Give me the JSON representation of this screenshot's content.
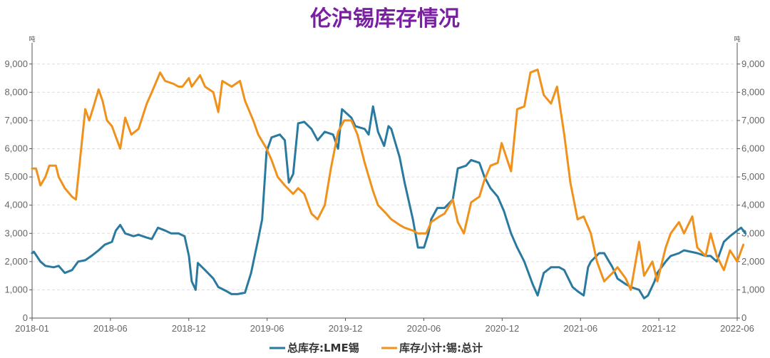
{
  "chart_data": {
    "type": "line",
    "title": "伦沪锡库存情况",
    "y_unit_left": "吨",
    "y_unit_right": "吨",
    "ylim_left": [
      0,
      9500
    ],
    "ylim_right": [
      0,
      9500
    ],
    "y_ticks": [
      0,
      1000,
      2000,
      3000,
      4000,
      5000,
      6000,
      7000,
      8000,
      9000
    ],
    "y_tick_labels": [
      "0",
      "1,000",
      "2,000",
      "3,000",
      "4,000",
      "5,000",
      "6,000",
      "7,000",
      "8,000",
      "9,000"
    ],
    "x_tick_labels": [
      "2018-01",
      "2018-06",
      "2018-12",
      "2019-06",
      "2019-12",
      "2020-06",
      "2020-12",
      "2021-06",
      "2021-12",
      "2022-06"
    ],
    "x_range": [
      "2018-01",
      "2022-06"
    ],
    "grid": "horizontal dashed",
    "legend_position": "bottom",
    "series": [
      {
        "name": "总库存:LME锡",
        "color": "#2a7aa0",
        "axis": "left",
        "points": [
          [
            "2018-01",
            2300
          ],
          [
            "2018-01-05",
            2350
          ],
          [
            "2018-01-20",
            2000
          ],
          [
            "2018-02",
            1850
          ],
          [
            "2018-02-20",
            1800
          ],
          [
            "2018-03",
            1850
          ],
          [
            "2018-03-15",
            1600
          ],
          [
            "2018-04",
            1700
          ],
          [
            "2018-04-15",
            2000
          ],
          [
            "2018-05",
            2050
          ],
          [
            "2018-05-15",
            2200
          ],
          [
            "2018-06",
            2400
          ],
          [
            "2018-06-15",
            2600
          ],
          [
            "2018-07",
            2700
          ],
          [
            "2018-07-10",
            3100
          ],
          [
            "2018-07-20",
            3300
          ],
          [
            "2018-08",
            3000
          ],
          [
            "2018-08-20",
            2900
          ],
          [
            "2018-09",
            2950
          ],
          [
            "2018-09-20",
            2850
          ],
          [
            "2018-10",
            2800
          ],
          [
            "2018-10-15",
            3200
          ],
          [
            "2018-11",
            3100
          ],
          [
            "2018-11-15",
            3000
          ],
          [
            "2018-12",
            3000
          ],
          [
            "2018-12-15",
            2900
          ],
          [
            "2018-12-25",
            2200
          ],
          [
            "2019-01",
            1300
          ],
          [
            "2019-01-10",
            1000
          ],
          [
            "2019-01-15",
            1950
          ],
          [
            "2019-02",
            1700
          ],
          [
            "2019-02-20",
            1400
          ],
          [
            "2019-03",
            1100
          ],
          [
            "2019-03-20",
            950
          ],
          [
            "2019-04",
            850
          ],
          [
            "2019-04-15",
            850
          ],
          [
            "2019-05",
            900
          ],
          [
            "2019-05-15",
            1600
          ],
          [
            "2019-06",
            2800
          ],
          [
            "2019-06-10",
            3500
          ],
          [
            "2019-06-20",
            5900
          ],
          [
            "2019-07",
            6400
          ],
          [
            "2019-07-20",
            6500
          ],
          [
            "2019-08",
            6300
          ],
          [
            "2019-08-10",
            4800
          ],
          [
            "2019-08-20",
            5100
          ],
          [
            "2019-09",
            6900
          ],
          [
            "2019-09-15",
            6950
          ],
          [
            "2019-10",
            6700
          ],
          [
            "2019-10-15",
            6300
          ],
          [
            "2019-11",
            6600
          ],
          [
            "2019-11-20",
            6500
          ],
          [
            "2019-12",
            6000
          ],
          [
            "2019-12-10",
            7400
          ],
          [
            "2020-01",
            7100
          ],
          [
            "2020-01-10",
            6800
          ],
          [
            "2020-02",
            6700
          ],
          [
            "2020-02-10",
            6500
          ],
          [
            "2020-02-20",
            7500
          ],
          [
            "2020-03",
            6600
          ],
          [
            "2020-03-15",
            6100
          ],
          [
            "2020-03-25",
            6800
          ],
          [
            "2020-04",
            6700
          ],
          [
            "2020-04-20",
            5700
          ],
          [
            "2020-05",
            4800
          ],
          [
            "2020-05-20",
            3500
          ],
          [
            "2020-06",
            2500
          ],
          [
            "2020-06-15",
            2500
          ],
          [
            "2020-06-25",
            3000
          ],
          [
            "2020-07",
            3500
          ],
          [
            "2020-07-15",
            3900
          ],
          [
            "2020-08",
            3900
          ],
          [
            "2020-08-20",
            4200
          ],
          [
            "2020-09",
            5300
          ],
          [
            "2020-09-20",
            5400
          ],
          [
            "2020-10",
            5600
          ],
          [
            "2020-10-20",
            5500
          ],
          [
            "2020-11",
            5000
          ],
          [
            "2020-11-15",
            4600
          ],
          [
            "2020-12",
            4300
          ],
          [
            "2020-12-15",
            3800
          ],
          [
            "2021-01",
            3000
          ],
          [
            "2021-01-15",
            2500
          ],
          [
            "2021-02",
            2000
          ],
          [
            "2021-02-20",
            1200
          ],
          [
            "2021-03",
            800
          ],
          [
            "2021-03-15",
            1600
          ],
          [
            "2021-04",
            1800
          ],
          [
            "2021-04-20",
            1800
          ],
          [
            "2021-05",
            1700
          ],
          [
            "2021-05-20",
            1100
          ],
          [
            "2021-06",
            950
          ],
          [
            "2021-06-15",
            800
          ],
          [
            "2021-06-25",
            1800
          ],
          [
            "2021-07",
            2000
          ],
          [
            "2021-07-20",
            2300
          ],
          [
            "2021-08",
            2300
          ],
          [
            "2021-08-20",
            1800
          ],
          [
            "2021-09",
            1400
          ],
          [
            "2021-09-20",
            1200
          ],
          [
            "2021-10",
            1100
          ],
          [
            "2021-10-20",
            1000
          ],
          [
            "2021-11",
            700
          ],
          [
            "2021-11-10",
            800
          ],
          [
            "2021-11-25",
            1300
          ],
          [
            "2021-12",
            1600
          ],
          [
            "2021-12-20",
            2000
          ],
          [
            "2022-01",
            2200
          ],
          [
            "2022-01-20",
            2300
          ],
          [
            "2022-02",
            2400
          ],
          [
            "2022-03",
            2300
          ],
          [
            "2022-03-20",
            2200
          ],
          [
            "2022-04",
            2200
          ],
          [
            "2022-04-15",
            2000
          ],
          [
            "2022-05",
            2700
          ],
          [
            "2022-05-15",
            2900
          ],
          [
            "2022-06",
            3100
          ],
          [
            "2022-06-10",
            3200
          ],
          [
            "2022-06-20",
            3000
          ]
        ]
      },
      {
        "name": "库存小计:锡:总计",
        "color": "#f0911c",
        "axis": "right",
        "points": [
          [
            "2018-01",
            5300
          ],
          [
            "2018-01-10",
            5300
          ],
          [
            "2018-01-20",
            4700
          ],
          [
            "2018-02",
            5000
          ],
          [
            "2018-02-10",
            5400
          ],
          [
            "2018-02-25",
            5400
          ],
          [
            "2018-03",
            5000
          ],
          [
            "2018-03-15",
            4600
          ],
          [
            "2018-04",
            4300
          ],
          [
            "2018-04-10",
            4200
          ],
          [
            "2018-04-20",
            5700
          ],
          [
            "2018-05",
            7400
          ],
          [
            "2018-05-10",
            7000
          ],
          [
            "2018-05-20",
            7500
          ],
          [
            "2018-06",
            8100
          ],
          [
            "2018-06-10",
            7700
          ],
          [
            "2018-06-20",
            7000
          ],
          [
            "2018-07",
            6800
          ],
          [
            "2018-07-20",
            6000
          ],
          [
            "2018-08",
            7100
          ],
          [
            "2018-08-15",
            6500
          ],
          [
            "2018-09",
            6700
          ],
          [
            "2018-09-20",
            7600
          ],
          [
            "2018-10",
            8000
          ],
          [
            "2018-10-20",
            8700
          ],
          [
            "2018-11",
            8400
          ],
          [
            "2018-11-20",
            8300
          ],
          [
            "2018-12",
            8200
          ],
          [
            "2018-12-10",
            8200
          ],
          [
            "2018-12-25",
            8500
          ],
          [
            "2019-01",
            8200
          ],
          [
            "2019-01-20",
            8600
          ],
          [
            "2019-02",
            8200
          ],
          [
            "2019-02-20",
            8000
          ],
          [
            "2019-03",
            7300
          ],
          [
            "2019-03-10",
            8400
          ],
          [
            "2019-04",
            8200
          ],
          [
            "2019-04-20",
            8400
          ],
          [
            "2019-05",
            7700
          ],
          [
            "2019-05-20",
            7000
          ],
          [
            "2019-06",
            6500
          ],
          [
            "2019-06-20",
            6000
          ],
          [
            "2019-07",
            5600
          ],
          [
            "2019-07-15",
            5000
          ],
          [
            "2019-08",
            4700
          ],
          [
            "2019-08-20",
            4400
          ],
          [
            "2019-09",
            4600
          ],
          [
            "2019-09-15",
            4400
          ],
          [
            "2019-10",
            3700
          ],
          [
            "2019-10-15",
            3500
          ],
          [
            "2019-11",
            4000
          ],
          [
            "2019-11-15",
            5300
          ],
          [
            "2019-12",
            6600
          ],
          [
            "2019-12-15",
            7000
          ],
          [
            "2020-01",
            7000
          ],
          [
            "2020-01-15",
            6500
          ],
          [
            "2020-02",
            5500
          ],
          [
            "2020-02-20",
            4500
          ],
          [
            "2020-03",
            4000
          ],
          [
            "2020-03-20",
            3700
          ],
          [
            "2020-04",
            3500
          ],
          [
            "2020-04-20",
            3300
          ],
          [
            "2020-05",
            3200
          ],
          [
            "2020-05-20",
            3100
          ],
          [
            "2020-06",
            3000
          ],
          [
            "2020-06-20",
            3000
          ],
          [
            "2020-07",
            3400
          ],
          [
            "2020-07-20",
            3600
          ],
          [
            "2020-08",
            3700
          ],
          [
            "2020-08-20",
            4200
          ],
          [
            "2020-09",
            3400
          ],
          [
            "2020-09-15",
            3000
          ],
          [
            "2020-10",
            4100
          ],
          [
            "2020-10-20",
            4300
          ],
          [
            "2020-11",
            4900
          ],
          [
            "2020-11-15",
            5400
          ],
          [
            "2020-12",
            5500
          ],
          [
            "2020-12-10",
            6200
          ],
          [
            "2021-01",
            5200
          ],
          [
            "2021-01-15",
            7400
          ],
          [
            "2021-02",
            7500
          ],
          [
            "2021-02-15",
            8700
          ],
          [
            "2021-03",
            8800
          ],
          [
            "2021-03-15",
            7900
          ],
          [
            "2021-04",
            7600
          ],
          [
            "2021-04-15",
            8200
          ],
          [
            "2021-05",
            6500
          ],
          [
            "2021-05-15",
            4800
          ],
          [
            "2021-06",
            3500
          ],
          [
            "2021-06-15",
            3600
          ],
          [
            "2021-07",
            3000
          ],
          [
            "2021-07-15",
            2000
          ],
          [
            "2021-08",
            1300
          ],
          [
            "2021-08-20",
            1600
          ],
          [
            "2021-09",
            1800
          ],
          [
            "2021-09-20",
            1400
          ],
          [
            "2021-10",
            1000
          ],
          [
            "2021-10-20",
            2700
          ],
          [
            "2021-11",
            1500
          ],
          [
            "2021-11-20",
            2000
          ],
          [
            "2021-12",
            1300
          ],
          [
            "2021-12-20",
            2500
          ],
          [
            "2022-01",
            3000
          ],
          [
            "2022-01-20",
            3400
          ],
          [
            "2022-02",
            3000
          ],
          [
            "2022-02-20",
            3600
          ],
          [
            "2022-03",
            2500
          ],
          [
            "2022-03-20",
            2200
          ],
          [
            "2022-04",
            3000
          ],
          [
            "2022-04-15",
            2200
          ],
          [
            "2022-05",
            1700
          ],
          [
            "2022-05-15",
            2400
          ],
          [
            "2022-06",
            2000
          ],
          [
            "2022-06-15",
            2600
          ]
        ]
      }
    ]
  }
}
